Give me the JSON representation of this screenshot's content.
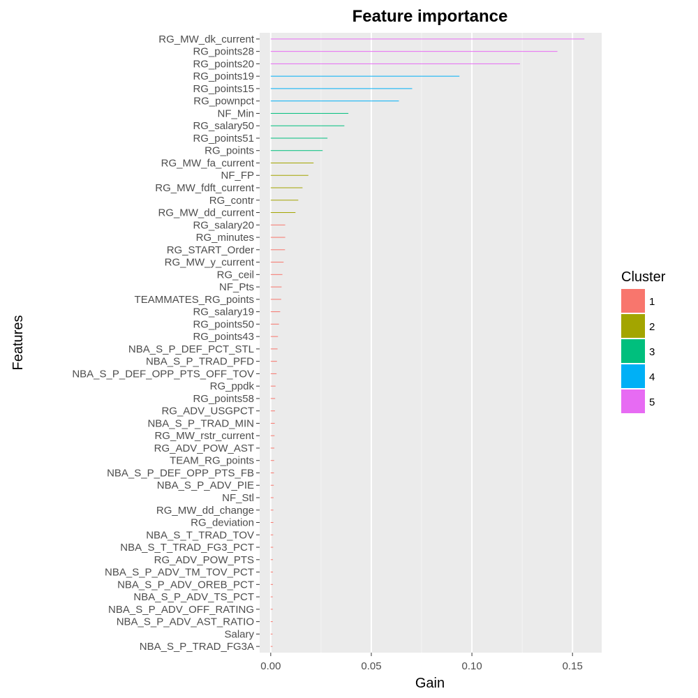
{
  "chart_data": {
    "type": "bar",
    "orientation": "horizontal",
    "title": "Feature importance",
    "xlabel": "Gain",
    "ylabel": "Features",
    "xlim": [
      -0.0055,
      0.1645
    ],
    "xticks": [
      0.0,
      0.05,
      0.1,
      0.15
    ],
    "xtick_labels": [
      "0.00",
      "0.05",
      "0.10",
      "0.15"
    ],
    "grid": true,
    "legend": {
      "title": "Cluster",
      "position": "right",
      "entries": [
        {
          "label": "1",
          "color": "#F8766D"
        },
        {
          "label": "2",
          "color": "#A3A500"
        },
        {
          "label": "3",
          "color": "#00BF7D"
        },
        {
          "label": "4",
          "color": "#00B0F6"
        },
        {
          "label": "5",
          "color": "#E76BF3"
        }
      ]
    },
    "features": [
      {
        "name": "RG_MW_dk_current",
        "gain": 0.1559,
        "cluster": "5"
      },
      {
        "name": "RG_points28",
        "gain": 0.1425,
        "cluster": "5"
      },
      {
        "name": "RG_points20",
        "gain": 0.1239,
        "cluster": "5"
      },
      {
        "name": "RG_points19",
        "gain": 0.0938,
        "cluster": "4"
      },
      {
        "name": "RG_points15",
        "gain": 0.0703,
        "cluster": "4"
      },
      {
        "name": "RG_pownpct",
        "gain": 0.0637,
        "cluster": "4"
      },
      {
        "name": "NF_Min",
        "gain": 0.0386,
        "cluster": "3"
      },
      {
        "name": "RG_salary50",
        "gain": 0.0366,
        "cluster": "3"
      },
      {
        "name": "RG_points51",
        "gain": 0.0282,
        "cluster": "3"
      },
      {
        "name": "RG_points",
        "gain": 0.0258,
        "cluster": "3"
      },
      {
        "name": "RG_MW_fa_current",
        "gain": 0.0213,
        "cluster": "2"
      },
      {
        "name": "NF_FP",
        "gain": 0.0187,
        "cluster": "2"
      },
      {
        "name": "RG_MW_fdft_current",
        "gain": 0.0158,
        "cluster": "2"
      },
      {
        "name": "RG_contr",
        "gain": 0.0137,
        "cluster": "2"
      },
      {
        "name": "RG_MW_dd_current",
        "gain": 0.0123,
        "cluster": "2"
      },
      {
        "name": "RG_salary20",
        "gain": 0.0072,
        "cluster": "1"
      },
      {
        "name": "RG_minutes",
        "gain": 0.0072,
        "cluster": "1"
      },
      {
        "name": "RG_START_Order",
        "gain": 0.0071,
        "cluster": "1"
      },
      {
        "name": "RG_MW_y_current",
        "gain": 0.0064,
        "cluster": "1"
      },
      {
        "name": "RG_ceil",
        "gain": 0.0058,
        "cluster": "1"
      },
      {
        "name": "NF_Pts",
        "gain": 0.0054,
        "cluster": "1"
      },
      {
        "name": "TEAMMATES_RG_points",
        "gain": 0.0052,
        "cluster": "1"
      },
      {
        "name": "RG_salary19",
        "gain": 0.0047,
        "cluster": "1"
      },
      {
        "name": "RG_points50",
        "gain": 0.0041,
        "cluster": "1"
      },
      {
        "name": "RG_points43",
        "gain": 0.0036,
        "cluster": "1"
      },
      {
        "name": "NBA_S_P_DEF_PCT_STL",
        "gain": 0.0034,
        "cluster": "1"
      },
      {
        "name": "NBA_S_P_TRAD_PFD",
        "gain": 0.0031,
        "cluster": "1"
      },
      {
        "name": "NBA_S_P_DEF_OPP_PTS_OFF_TOV",
        "gain": 0.0029,
        "cluster": "1"
      },
      {
        "name": "RG_ppdk",
        "gain": 0.0024,
        "cluster": "1"
      },
      {
        "name": "RG_points58",
        "gain": 0.0022,
        "cluster": "1"
      },
      {
        "name": "RG_ADV_USGPCT",
        "gain": 0.0021,
        "cluster": "1"
      },
      {
        "name": "NBA_S_P_TRAD_MIN",
        "gain": 0.002,
        "cluster": "1"
      },
      {
        "name": "RG_MW_rstr_current",
        "gain": 0.0019,
        "cluster": "1"
      },
      {
        "name": "RG_ADV_POW_AST",
        "gain": 0.0018,
        "cluster": "1"
      },
      {
        "name": "TEAM_RG_points",
        "gain": 0.0017,
        "cluster": "1"
      },
      {
        "name": "NBA_S_P_DEF_OPP_PTS_FB",
        "gain": 0.0016,
        "cluster": "1"
      },
      {
        "name": "NBA_S_P_ADV_PIE",
        "gain": 0.0015,
        "cluster": "1"
      },
      {
        "name": "NF_Stl",
        "gain": 0.0014,
        "cluster": "1"
      },
      {
        "name": "RG_MW_dd_change",
        "gain": 0.0013,
        "cluster": "1"
      },
      {
        "name": "RG_deviation",
        "gain": 0.0013,
        "cluster": "1"
      },
      {
        "name": "NBA_S_T_TRAD_TOV",
        "gain": 0.0012,
        "cluster": "1"
      },
      {
        "name": "NBA_S_T_TRAD_FG3_PCT",
        "gain": 0.0012,
        "cluster": "1"
      },
      {
        "name": "RG_ADV_POW_PTS",
        "gain": 0.0011,
        "cluster": "1"
      },
      {
        "name": "NBA_S_P_ADV_TM_TOV_PCT",
        "gain": 0.0011,
        "cluster": "1"
      },
      {
        "name": "NBA_S_P_ADV_OREB_PCT",
        "gain": 0.0011,
        "cluster": "1"
      },
      {
        "name": "NBA_S_P_ADV_TS_PCT",
        "gain": 0.001,
        "cluster": "1"
      },
      {
        "name": "NBA_S_P_ADV_OFF_RATING",
        "gain": 0.001,
        "cluster": "1"
      },
      {
        "name": "NBA_S_P_ADV_AST_RATIO",
        "gain": 0.001,
        "cluster": "1"
      },
      {
        "name": "Salary",
        "gain": 0.0009,
        "cluster": "1"
      },
      {
        "name": "NBA_S_P_TRAD_FG3A",
        "gain": 0.0009,
        "cluster": "1"
      }
    ]
  }
}
